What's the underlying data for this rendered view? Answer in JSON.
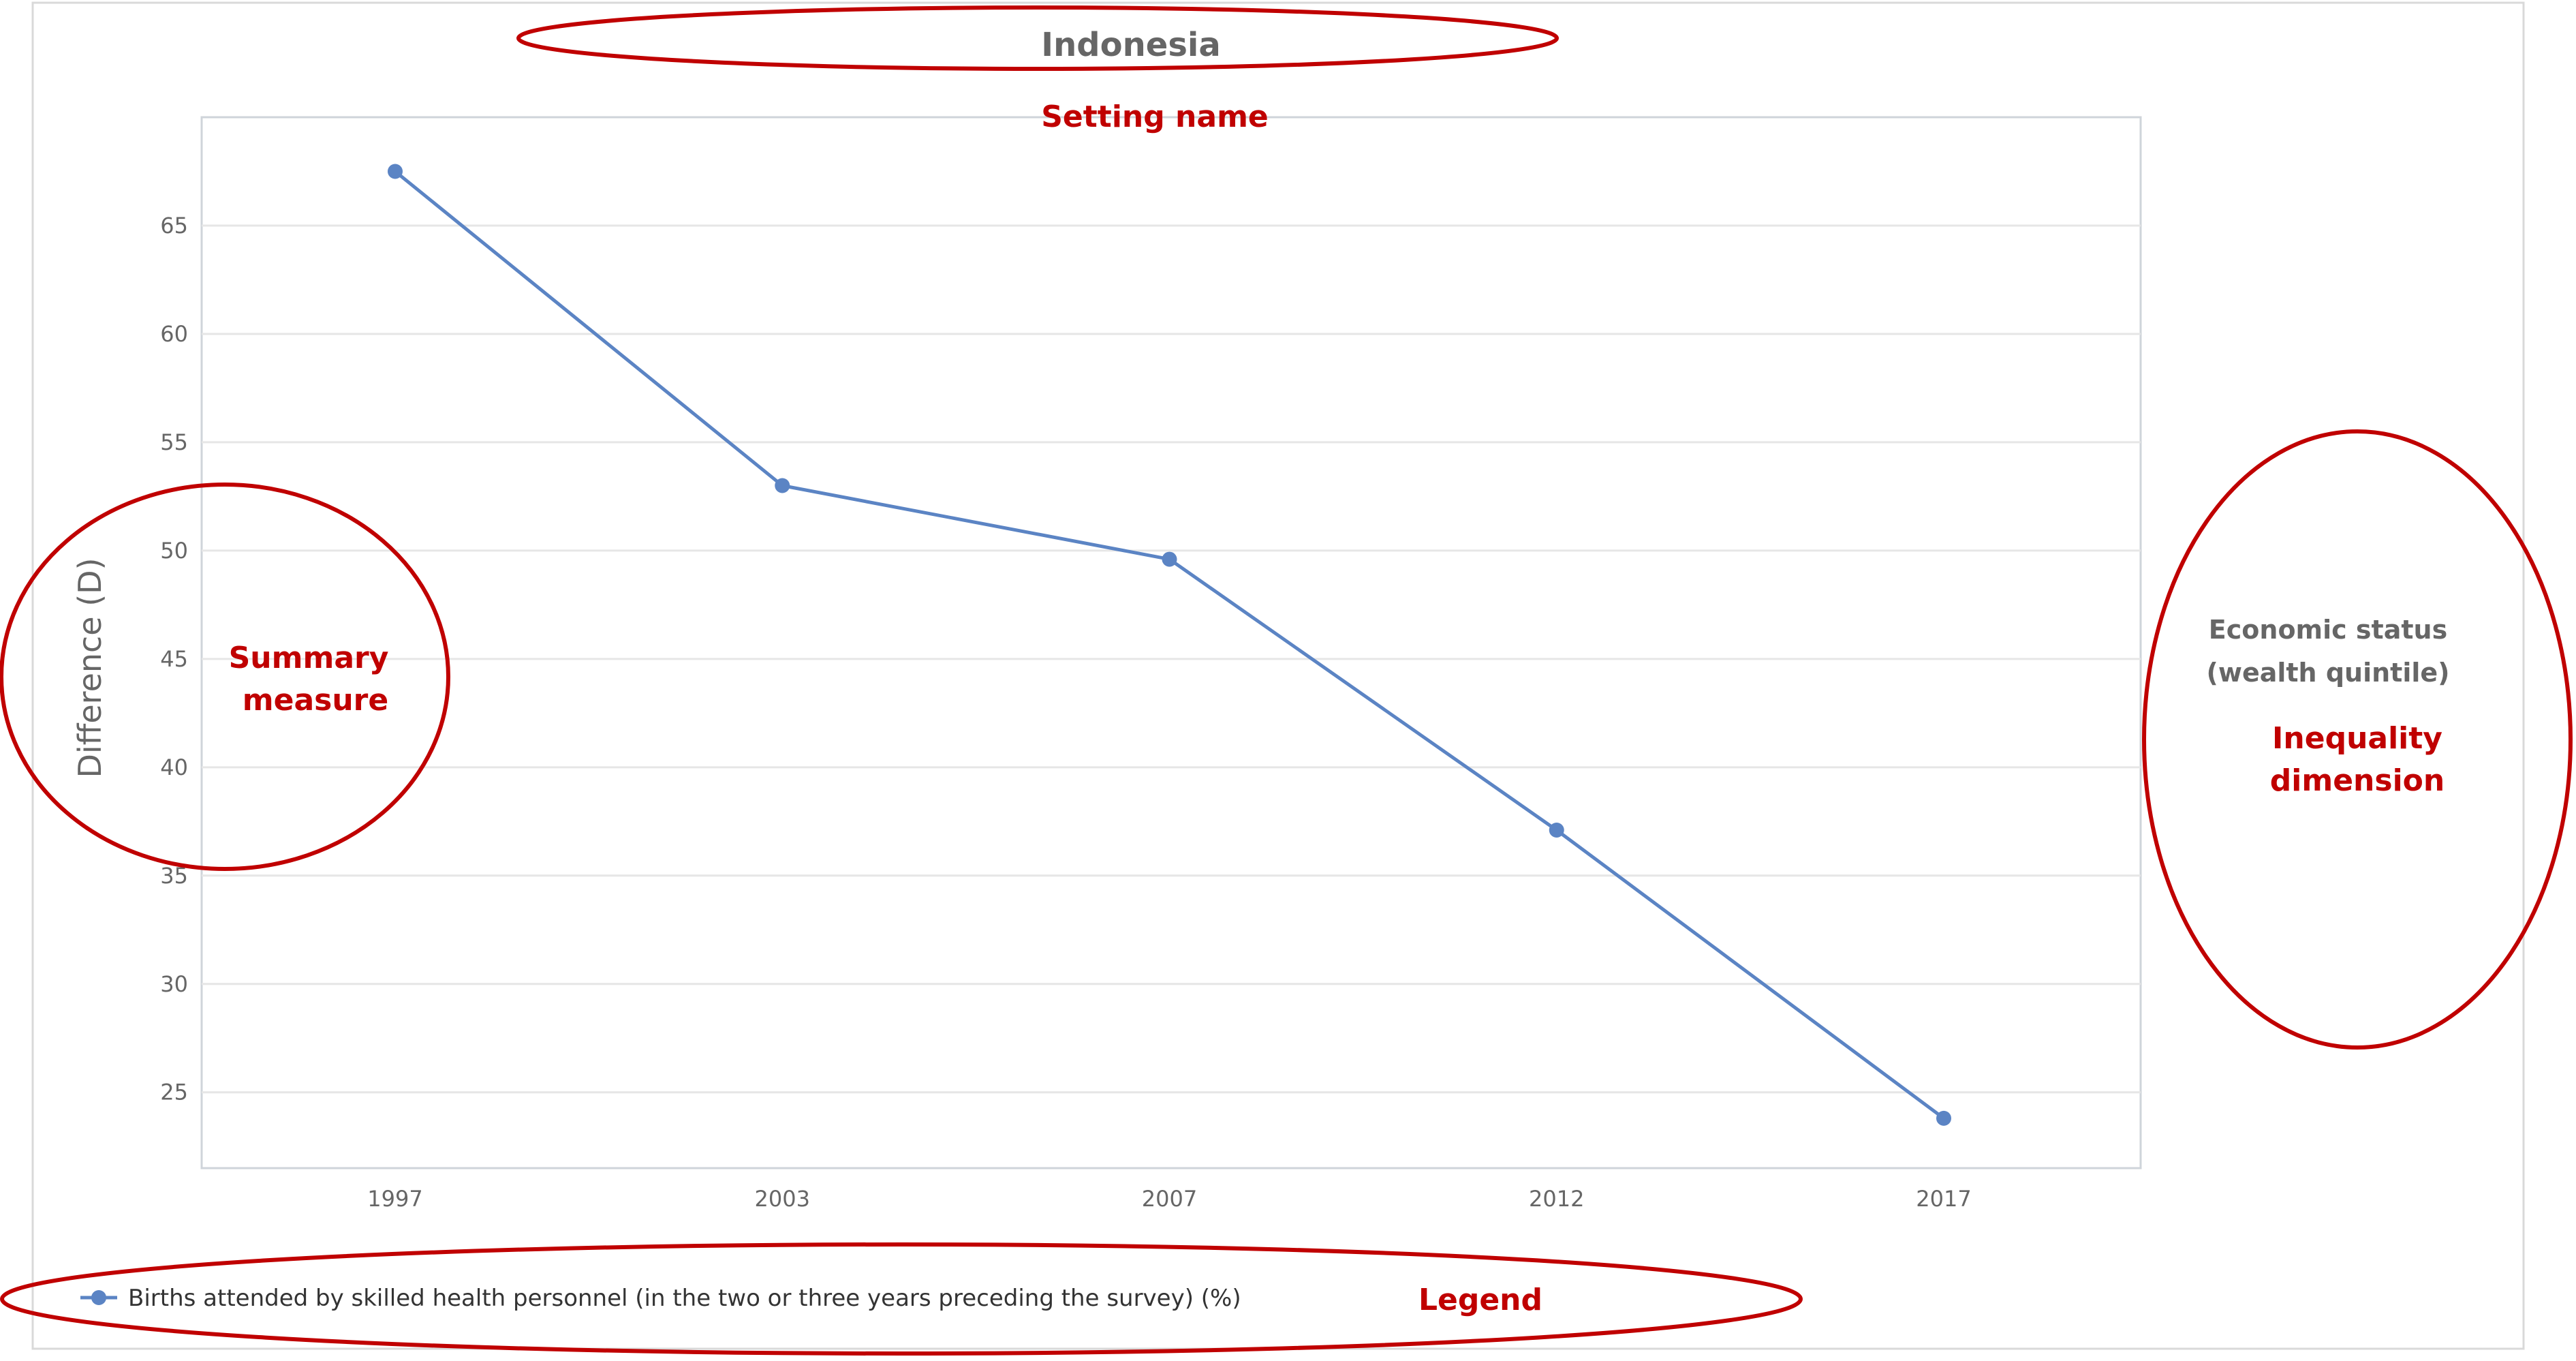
{
  "annotations": {
    "setting_name": "Setting name",
    "summary_measure": [
      "Summary",
      "measure"
    ],
    "inequality_dimension": [
      "Inequality",
      "dimension"
    ],
    "legend": "Legend"
  },
  "inequality_dimension_label": [
    "Economic status",
    "(wealth quintile)"
  ],
  "colors": {
    "series": "#5b84c4",
    "annotation": "#c00000",
    "grid": "#e6e6e6",
    "text": "#666666"
  },
  "chart_data": {
    "type": "line",
    "title": "Indonesia",
    "xlabel": "",
    "ylabel": "Difference (D)",
    "categories": [
      "1997",
      "2003",
      "2007",
      "2012",
      "2017"
    ],
    "series": [
      {
        "name": "Births attended by skilled health personnel (in the two or three years preceding the survey) (%)",
        "values": [
          67.5,
          53.0,
          49.6,
          37.1,
          23.8
        ]
      }
    ],
    "ylim": [
      21.5,
      70
    ],
    "yticks": [
      25,
      30,
      35,
      40,
      45,
      50,
      55,
      60,
      65
    ],
    "grid": true,
    "legend_position": "bottom-left"
  }
}
